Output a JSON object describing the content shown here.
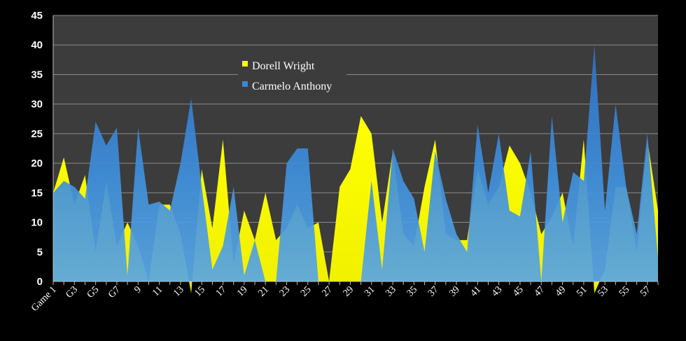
{
  "chart_data": {
    "type": "area",
    "categories": [
      "Game 1",
      "G2",
      "G3",
      "G4",
      "G5",
      "G6",
      "G7",
      "8",
      "9",
      "10",
      "11",
      "12",
      "13",
      "14",
      "15",
      "16",
      "17",
      "18",
      "19",
      "20",
      "21",
      "22",
      "23",
      "24",
      "25",
      "26",
      "27",
      "28",
      "29",
      "30",
      "31",
      "32",
      "33",
      "34",
      "35",
      "36",
      "37",
      "38",
      "39",
      "40",
      "41",
      "42",
      "43",
      "44",
      "45",
      "46",
      "47",
      "48",
      "49",
      "50",
      "51",
      "52",
      "53",
      "54",
      "55",
      "56",
      "57",
      "58"
    ],
    "tick_labels": [
      "Game 1",
      "G3",
      "G5",
      "G7",
      "9",
      "11",
      "13",
      "15",
      "17",
      "19",
      "21",
      "23",
      "25",
      "27",
      "29",
      "31",
      "33",
      "35",
      "37",
      "39",
      "41",
      "43",
      "45",
      "47",
      "49",
      "51",
      "53",
      "55",
      "57"
    ],
    "ylim": [
      0,
      45
    ],
    "yticks": [
      0,
      5,
      10,
      15,
      20,
      25,
      30,
      35,
      40,
      45
    ],
    "grid": true,
    "legend_position": "top-center",
    "series": [
      {
        "name": "Dorell Wright",
        "color": "#ffff00",
        "values": [
          15,
          21,
          13,
          18,
          5,
          17,
          6,
          10,
          6,
          0,
          13,
          13,
          8,
          -2,
          19,
          9,
          24,
          3,
          12,
          7,
          15,
          7,
          9,
          13,
          9,
          10,
          0,
          16,
          19,
          28,
          25,
          10,
          22,
          8,
          6,
          16,
          24,
          8,
          7,
          7,
          19,
          13,
          16,
          23,
          20,
          15,
          8,
          11,
          15,
          6,
          24,
          -2,
          2,
          16,
          16,
          5,
          24,
          12
        ]
      },
      {
        "name": "Carmelo Anthony",
        "color": "#3a87d6",
        "values": [
          15,
          17,
          16,
          14,
          27,
          23,
          26,
          1,
          26,
          13,
          13.5,
          12,
          20,
          31,
          16,
          2,
          6,
          16,
          1,
          7,
          0,
          0,
          20,
          22.5,
          22.5,
          0,
          0,
          0,
          0,
          0,
          17,
          2,
          22.5,
          17,
          14,
          5,
          22,
          14,
          8,
          5,
          26.5,
          15,
          25,
          12,
          11,
          22,
          0,
          28,
          10,
          18.5,
          17,
          40,
          12,
          30,
          16,
          8,
          25,
          4
        ]
      }
    ]
  }
}
